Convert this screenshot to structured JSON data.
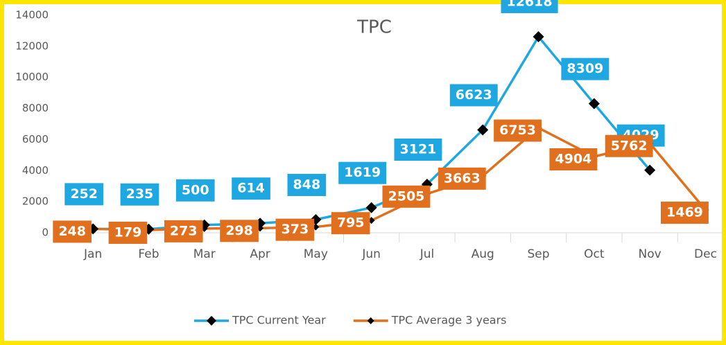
{
  "chart_data": {
    "type": "line",
    "title": "TPC",
    "categories": [
      "Jan",
      "Feb",
      "Mar",
      "Apr",
      "May",
      "Jun",
      "Jul",
      "Aug",
      "Sep",
      "Oct",
      "Nov",
      "Dec"
    ],
    "series": [
      {
        "name": "TPC Current Year",
        "color": "#1ea7e1",
        "values": [
          252,
          235,
          500,
          614,
          848,
          1619,
          3121,
          6623,
          12618,
          8309,
          4029,
          null
        ]
      },
      {
        "name": "TPC Average 3 years",
        "color": "#e0701e",
        "values": [
          248,
          179,
          273,
          298,
          373,
          795,
          2505,
          3663,
          6753,
          4904,
          5762,
          1469
        ]
      }
    ],
    "ylim": [
      0,
      14000
    ],
    "yticks": [
      0,
      2000,
      4000,
      6000,
      8000,
      10000,
      12000,
      14000
    ],
    "legend": "bottom",
    "grid": false
  }
}
